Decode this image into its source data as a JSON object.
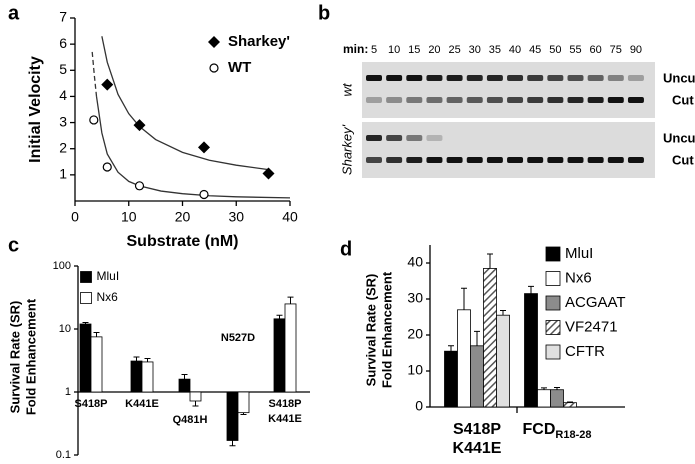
{
  "chart_data": [
    {
      "panel": "a",
      "type": "scatter",
      "xlabel": "Substrate (nM)",
      "ylabel": "Initial Velocity",
      "xlim": [
        0,
        40
      ],
      "xticks": [
        0,
        10,
        20,
        30,
        40
      ],
      "ylim": [
        0,
        7
      ],
      "yticks": [
        1,
        2,
        3,
        4,
        5,
        6,
        7
      ],
      "series": [
        {
          "name": "Sharkey'",
          "color": "#000000",
          "marker": "diamond",
          "x": [
            6,
            12,
            24,
            36
          ],
          "values": [
            4.45,
            2.9,
            2.05,
            1.05
          ],
          "fit": {
            "x": [
              5,
              6,
              8,
              10,
              12,
              15,
              20,
              25,
              30,
              36
            ],
            "values": [
              6.3,
              5.31,
              4.08,
              3.34,
              2.85,
              2.35,
              1.86,
              1.56,
              1.37,
              1.2
            ]
          }
        },
        {
          "name": "WT",
          "color": "#000000",
          "marker": "circle",
          "x": [
            3.5,
            6,
            12,
            24
          ],
          "values": [
            3.1,
            1.3,
            0.58,
            0.25
          ],
          "fit": {
            "x": [
              4,
              5,
              6,
              8,
              10,
              12,
              16,
              20,
              25,
              30,
              40
            ],
            "values": [
              4.0,
              2.6,
              1.8,
              1.1,
              0.75,
              0.58,
              0.38,
              0.28,
              0.2,
              0.16,
              0.12
            ]
          },
          "fit_dashed": {
            "x": [
              3.2,
              3.6,
              4
            ],
            "values": [
              5.7,
              4.8,
              4.0
            ]
          }
        }
      ]
    },
    {
      "panel": "b",
      "type": "gel",
      "lanes_label": "min:",
      "lanes": [
        5,
        10,
        15,
        20,
        25,
        30,
        35,
        40,
        45,
        50,
        55,
        60,
        75,
        90
      ],
      "rows": [
        {
          "label": "wt",
          "bands": [
            "Uncut",
            "Cut"
          ]
        },
        {
          "label": "Sharkey'",
          "bands": [
            "Uncut",
            "Cut"
          ]
        }
      ]
    },
    {
      "panel": "c",
      "type": "bar",
      "log": true,
      "bar_base": 1,
      "ylabel": [
        "Survival Rate (SR)",
        "Fold Enhancement"
      ],
      "ylim": [
        0.1,
        100
      ],
      "yticks": [
        0.1,
        1,
        10,
        100
      ],
      "categories": [
        "S418P",
        "K441E",
        "Q481H",
        "N527D",
        [
          "S418P",
          "K441E"
        ]
      ],
      "series": [
        {
          "name": "MluI",
          "color": "#000000",
          "values": [
            12,
            3.1,
            1.6,
            0.17,
            14.5
          ],
          "errors": [
            0.7,
            0.5,
            0.3,
            0.03,
            2
          ]
        },
        {
          "name": "Nx6",
          "color": "#ffffff",
          "values": [
            7.5,
            3.0,
            0.72,
            0.47,
            25
          ],
          "errors": [
            1.3,
            0.4,
            0.12,
            0.03,
            7
          ]
        }
      ]
    },
    {
      "panel": "d",
      "type": "bar",
      "ylabel": [
        "Survival Rate (SR)",
        "Fold Enhancement"
      ],
      "ylim": [
        0,
        45
      ],
      "yticks": [
        0,
        10,
        20,
        30,
        40
      ],
      "categories": [
        [
          "S418P",
          "K441E"
        ],
        {
          "label": "FCD",
          "subscript": "R18-28"
        }
      ],
      "series": [
        {
          "name": "MluI",
          "color": "#000000",
          "values": [
            15.5,
            31.5
          ],
          "errors": [
            1.5,
            2
          ]
        },
        {
          "name": "Nx6",
          "color": "#ffffff",
          "values": [
            27,
            4.8
          ],
          "errors": [
            6,
            0.5
          ]
        },
        {
          "name": "ACGAAT",
          "color": "#8c8c8c",
          "values": [
            17,
            4.8
          ],
          "errors": [
            4,
            0.6
          ]
        },
        {
          "name": "VF2471",
          "color": "#555555",
          "fill_pattern": "diagonal-hatch",
          "values": [
            38.5,
            1.2
          ],
          "errors": [
            4,
            0.2
          ]
        },
        {
          "name": "CFTR",
          "color": "#e0e0e0",
          "values": [
            25.5,
            null
          ],
          "errors": [
            1.3,
            null
          ]
        }
      ]
    }
  ]
}
